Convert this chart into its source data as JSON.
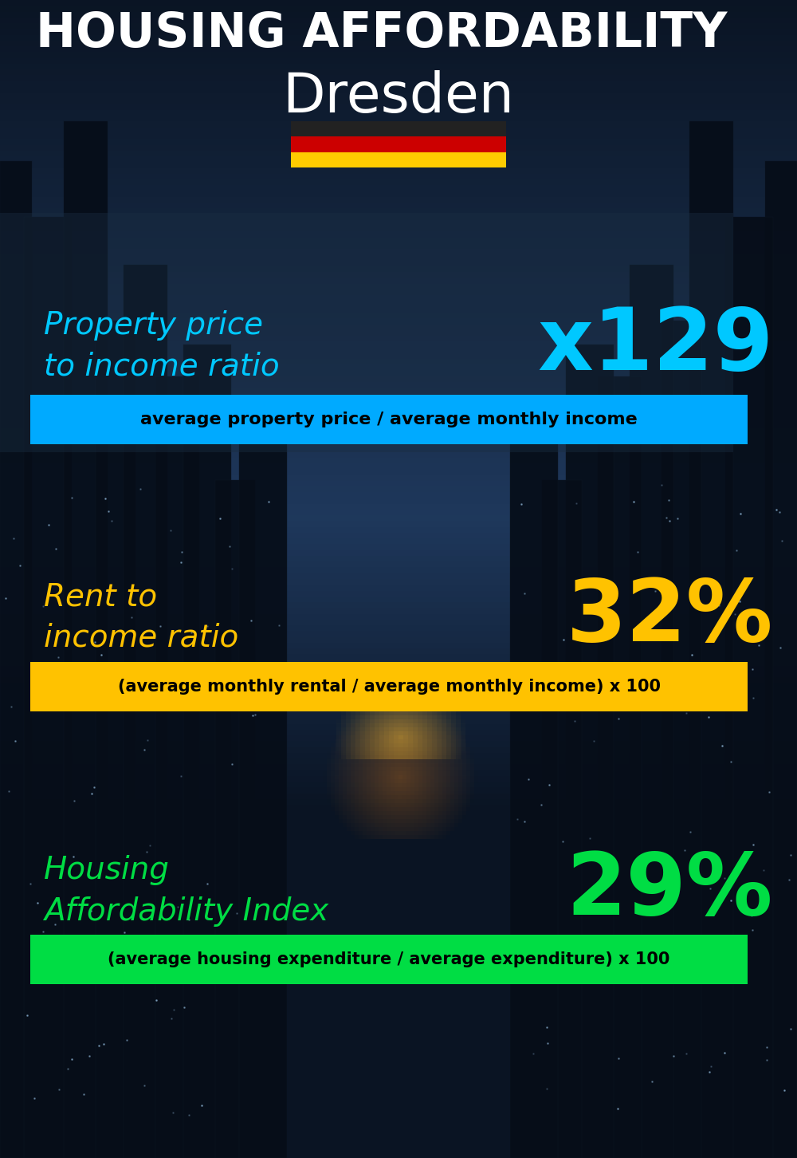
{
  "title_line1": "HOUSING AFFORDABILITY",
  "title_line2": "Dresden",
  "bg_color": "#080e18",
  "section1_label": "Property price\nto income ratio",
  "section1_value": "x129",
  "section1_label_color": "#00c8ff",
  "section1_value_color": "#00c8ff",
  "section1_box_text": "average property price / average monthly income",
  "section1_box_bg": "#00aaff",
  "section1_box_text_color": "#000000",
  "section2_label": "Rent to\nincome ratio",
  "section2_value": "32%",
  "section2_label_color": "#ffc200",
  "section2_value_color": "#ffc200",
  "section2_box_text": "(average monthly rental / average monthly income) x 100",
  "section2_box_bg": "#ffc200",
  "section2_box_text_color": "#000000",
  "section3_label": "Housing\nAffordability Index",
  "section3_value": "29%",
  "section3_label_color": "#00dd44",
  "section3_value_color": "#00dd44",
  "section3_box_text": "(average housing expenditure / average expenditure) x 100",
  "section3_box_bg": "#00dd44",
  "section3_box_text_color": "#000000",
  "flag_black": "#222222",
  "flag_red": "#cc0000",
  "flag_yellow": "#ffcc00",
  "panel_color": "#0d1e30",
  "panel_alpha": 0.55
}
